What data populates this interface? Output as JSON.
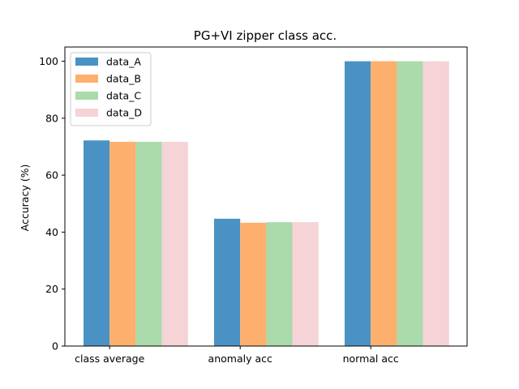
{
  "chart_data": {
    "type": "bar",
    "title": "PG+VI zipper class acc.",
    "xlabel": "",
    "ylabel": "Accuracy (%)",
    "categories": [
      "class average",
      "anomaly acc",
      "normal acc"
    ],
    "series": [
      {
        "name": "data_A",
        "values": [
          72.2,
          44.7,
          100
        ],
        "color": "#4a92c4"
      },
      {
        "name": "data_B",
        "values": [
          71.7,
          43.3,
          100
        ],
        "color": "#fdb06d"
      },
      {
        "name": "data_C",
        "values": [
          71.7,
          43.5,
          100
        ],
        "color": "#abdaab"
      },
      {
        "name": "data_D",
        "values": [
          71.7,
          43.5,
          100
        ],
        "color": "#f5d3d6"
      }
    ],
    "ylim": [
      0,
      105
    ],
    "yticks": [
      0,
      20,
      40,
      60,
      80,
      100
    ],
    "legend_position": "top-left",
    "grid": false
  }
}
